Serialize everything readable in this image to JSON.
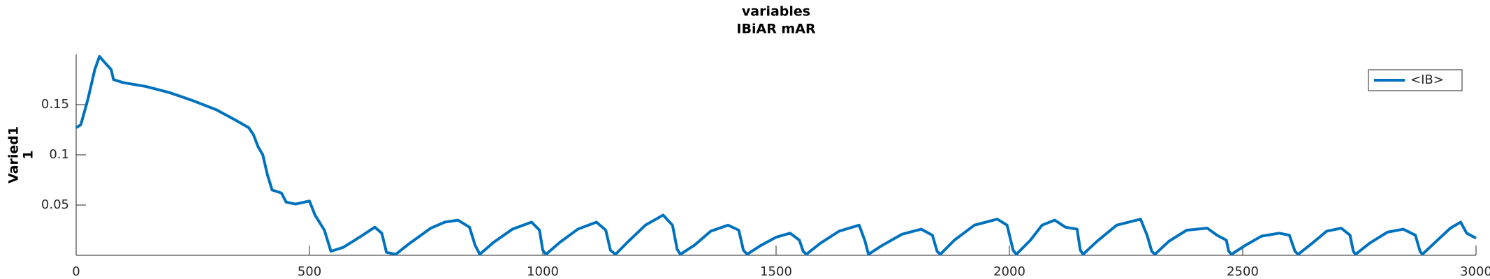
{
  "chart_data": {
    "type": "line",
    "title": "variables",
    "subtitle": "IBiAR mAR",
    "ylabel": [
      "Varied1",
      "1"
    ],
    "x": [
      0,
      10,
      25,
      40,
      50,
      65,
      75,
      80,
      100,
      150,
      200,
      250,
      300,
      340,
      370,
      380,
      390,
      400,
      410,
      420,
      440,
      450,
      470,
      500,
      512,
      532,
      546,
      573,
      614,
      640,
      655,
      665,
      685,
      715,
      760,
      790,
      818,
      843,
      855,
      865,
      895,
      935,
      976,
      993,
      1000,
      1007,
      1037,
      1075,
      1115,
      1135,
      1145,
      1156,
      1186,
      1220,
      1258,
      1278,
      1288,
      1295,
      1325,
      1360,
      1397,
      1420,
      1430,
      1438,
      1468,
      1500,
      1530,
      1550,
      1558,
      1565,
      1595,
      1635,
      1678,
      1690,
      1698,
      1728,
      1770,
      1811,
      1835,
      1845,
      1852,
      1882,
      1925,
      1974,
      1995,
      2008,
      2015,
      2045,
      2070,
      2097,
      2120,
      2145,
      2152,
      2158,
      2188,
      2230,
      2281,
      2295,
      2305,
      2312,
      2342,
      2380,
      2424,
      2445,
      2465,
      2470,
      2476,
      2506,
      2540,
      2578,
      2600,
      2612,
      2619,
      2649,
      2680,
      2711,
      2730,
      2737,
      2742,
      2772,
      2810,
      2844,
      2870,
      2880,
      2885,
      2915,
      2945,
      2967,
      2980,
      3000
    ],
    "series": [
      {
        "name": "<IB>",
        "color": "#0072BD",
        "values": [
          0.127,
          0.13,
          0.155,
          0.185,
          0.198,
          0.19,
          0.185,
          0.175,
          0.172,
          0.168,
          0.162,
          0.154,
          0.145,
          0.135,
          0.127,
          0.12,
          0.108,
          0.1,
          0.08,
          0.065,
          0.062,
          0.053,
          0.051,
          0.054,
          0.04,
          0.025,
          0.004,
          0.008,
          0.02,
          0.028,
          0.022,
          0.003,
          0.001,
          0.012,
          0.027,
          0.033,
          0.035,
          0.028,
          0.01,
          0.001,
          0.013,
          0.026,
          0.033,
          0.025,
          0.005,
          0.001,
          0.013,
          0.026,
          0.033,
          0.025,
          0.005,
          0.001,
          0.015,
          0.03,
          0.04,
          0.03,
          0.006,
          0.001,
          0.01,
          0.024,
          0.03,
          0.025,
          0.005,
          0.001,
          0.01,
          0.018,
          0.022,
          0.015,
          0.004,
          0.001,
          0.012,
          0.024,
          0.03,
          0.015,
          0.001,
          0.01,
          0.021,
          0.026,
          0.02,
          0.004,
          0.001,
          0.015,
          0.03,
          0.036,
          0.03,
          0.005,
          0.001,
          0.015,
          0.03,
          0.035,
          0.028,
          0.026,
          0.005,
          0.001,
          0.014,
          0.03,
          0.036,
          0.02,
          0.004,
          0.001,
          0.014,
          0.025,
          0.027,
          0.02,
          0.015,
          0.004,
          0.001,
          0.01,
          0.019,
          0.022,
          0.02,
          0.004,
          0.001,
          0.012,
          0.024,
          0.027,
          0.02,
          0.004,
          0.001,
          0.012,
          0.023,
          0.026,
          0.02,
          0.004,
          0.001,
          0.014,
          0.027,
          0.033,
          0.022,
          0.017
        ]
      }
    ],
    "xlim": [
      0,
      3000
    ],
    "xticks": [
      0,
      500,
      1000,
      1500,
      2000,
      2500,
      3000
    ],
    "ylim": [
      0,
      0.2
    ],
    "yticks": [
      0.05,
      0.1,
      0.15
    ],
    "grid": false,
    "legend": "northeast"
  }
}
